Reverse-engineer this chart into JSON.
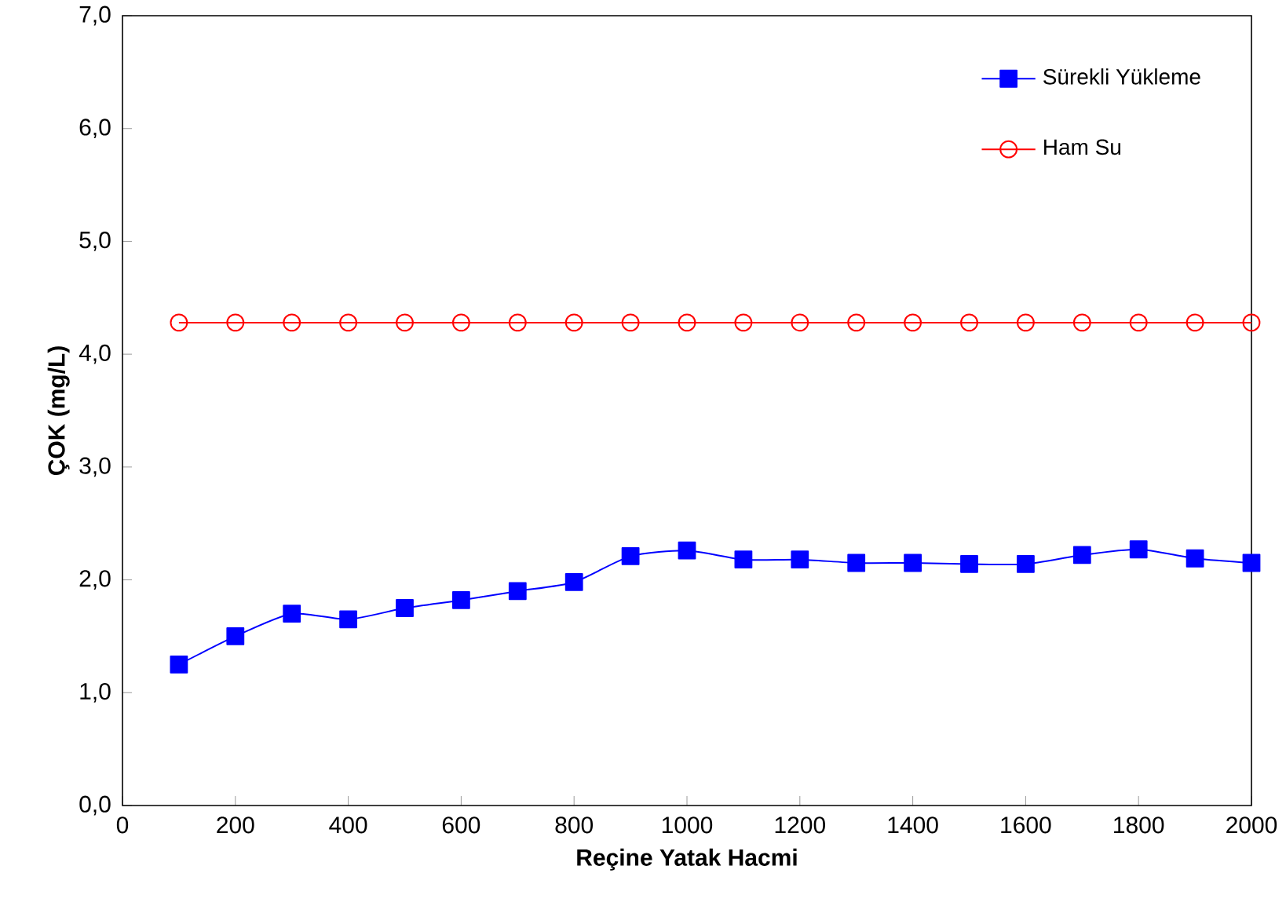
{
  "chart_data": {
    "type": "line",
    "xlabel": "Reçine Yatak Hacmi",
    "ylabel": "ÇOK (mg/L)",
    "x": [
      100,
      200,
      300,
      400,
      500,
      600,
      700,
      800,
      900,
      1000,
      1100,
      1200,
      1300,
      1400,
      1500,
      1600,
      1700,
      1800,
      1900,
      2000
    ],
    "series": [
      {
        "name": "Sürekli Yükleme",
        "color": "#0000ff",
        "marker": "square",
        "values": [
          1.25,
          1.5,
          1.7,
          1.65,
          1.75,
          1.82,
          1.9,
          1.98,
          2.21,
          2.26,
          2.18,
          2.18,
          2.15,
          2.15,
          2.14,
          2.14,
          2.22,
          2.27,
          2.19,
          2.15
        ]
      },
      {
        "name": "Ham Su",
        "color": "#ff0000",
        "marker": "circle",
        "values": [
          4.28,
          4.28,
          4.28,
          4.28,
          4.28,
          4.28,
          4.28,
          4.28,
          4.28,
          4.28,
          4.28,
          4.28,
          4.28,
          4.28,
          4.28,
          4.28,
          4.28,
          4.28,
          4.28,
          4.28
        ]
      }
    ],
    "xlim": [
      0,
      2000
    ],
    "ylim": [
      0,
      7
    ],
    "xticks": [
      0,
      200,
      400,
      600,
      800,
      1000,
      1200,
      1400,
      1600,
      1800,
      2000
    ],
    "yticks": [
      {
        "value": 0,
        "label": "0,0"
      },
      {
        "value": 1,
        "label": "1,0"
      },
      {
        "value": 2,
        "label": "2,0"
      },
      {
        "value": 3,
        "label": "3,0"
      },
      {
        "value": 4,
        "label": "4,0"
      },
      {
        "value": 5,
        "label": "5,0"
      },
      {
        "value": 6,
        "label": "6,0"
      },
      {
        "value": 7,
        "label": "7,0"
      }
    ],
    "grid": false,
    "legend": "top right"
  }
}
